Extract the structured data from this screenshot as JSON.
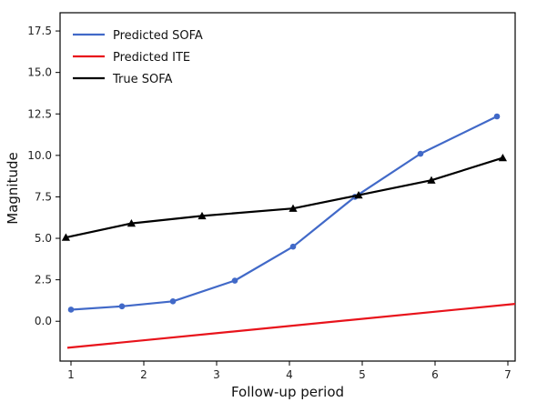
{
  "chart_data": {
    "type": "line",
    "title": "",
    "xlabel": "Follow-up period",
    "ylabel": "Magnitude",
    "xlim": [
      0.85,
      7.1
    ],
    "ylim": [
      -2.4,
      18.6
    ],
    "xticks": [
      1,
      2,
      3,
      4,
      5,
      6,
      7
    ],
    "yticks": [
      0.0,
      2.5,
      5.0,
      7.5,
      10.0,
      12.5,
      15.0,
      17.5
    ],
    "ytick_labels": [
      "0.0",
      "2.5",
      "5.0",
      "7.5",
      "10.0",
      "12.5",
      "15.0",
      "17.5"
    ],
    "grid": false,
    "legend_position": "top-left",
    "series": [
      {
        "name": "Predicted SOFA",
        "color": "#4169c8",
        "marker": "circle",
        "points": [
          [
            1.0,
            0.7
          ],
          [
            1.7,
            0.9
          ],
          [
            2.4,
            1.2
          ],
          [
            3.25,
            2.45
          ],
          [
            4.05,
            4.5
          ],
          [
            4.9,
            7.5
          ],
          [
            5.8,
            10.1
          ],
          [
            6.85,
            12.35
          ]
        ]
      },
      {
        "name": "Predicted ITE",
        "color": "#e8131b",
        "marker": "none",
        "points": [
          [
            0.95,
            -1.6
          ],
          [
            7.1,
            1.05
          ]
        ]
      },
      {
        "name": "True SOFA",
        "color": "#000000",
        "marker": "triangle",
        "points": [
          [
            0.93,
            5.05
          ],
          [
            1.83,
            5.9
          ],
          [
            2.8,
            6.35
          ],
          [
            4.05,
            6.8
          ],
          [
            4.95,
            7.6
          ],
          [
            5.95,
            8.5
          ],
          [
            6.93,
            9.85
          ]
        ]
      }
    ]
  }
}
